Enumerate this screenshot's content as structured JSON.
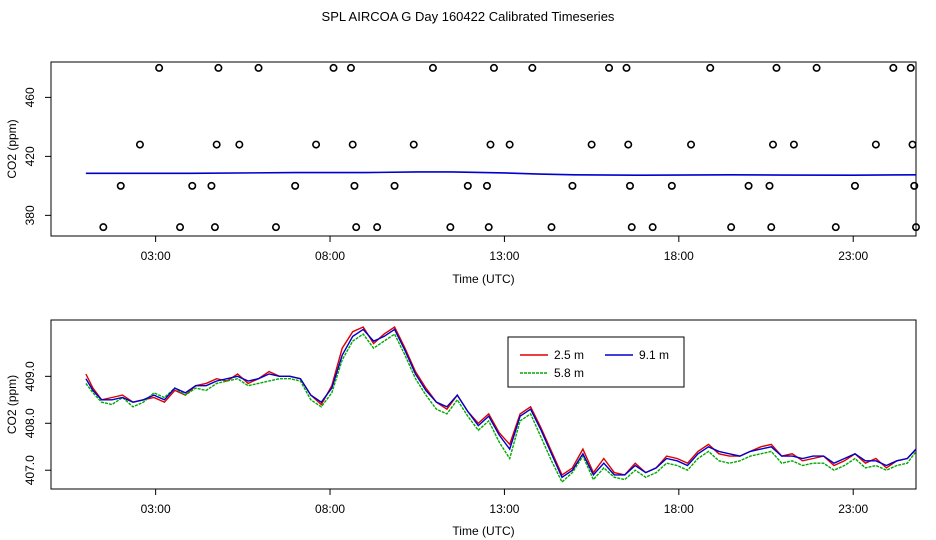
{
  "title": "SPL AIRCOA G  Day 160422  Calibrated Timeseries",
  "chart_data": [
    {
      "type": "scatter+line",
      "xlabel": "Time (UTC)",
      "ylabel": "CO2 (ppm)",
      "xlim": [
        0.0,
        24.8
      ],
      "ylim": [
        366,
        484
      ],
      "xticks": [
        3,
        8,
        13,
        18,
        23
      ],
      "xtick_labels": [
        "03:00",
        "08:00",
        "13:00",
        "18:00",
        "23:00"
      ],
      "yticks": [
        380,
        420,
        460
      ],
      "ytick_labels": [
        "380",
        "420",
        "460"
      ],
      "grid": false,
      "scatter": {
        "name": "",
        "color": "#000000",
        "points": [
          [
            1.5,
            372
          ],
          [
            2.0,
            400
          ],
          [
            2.55,
            428
          ],
          [
            3.1,
            480
          ],
          [
            3.7,
            372
          ],
          [
            4.05,
            400
          ],
          [
            4.6,
            400
          ],
          [
            4.7,
            372
          ],
          [
            4.75,
            428
          ],
          [
            4.8,
            480
          ],
          [
            5.4,
            428
          ],
          [
            5.95,
            480
          ],
          [
            6.45,
            372
          ],
          [
            7.0,
            400
          ],
          [
            7.6,
            428
          ],
          [
            8.1,
            480
          ],
          [
            8.6,
            480
          ],
          [
            8.65,
            428
          ],
          [
            8.7,
            400
          ],
          [
            8.75,
            372
          ],
          [
            9.35,
            372
          ],
          [
            9.85,
            400
          ],
          [
            10.4,
            428
          ],
          [
            10.95,
            480
          ],
          [
            11.45,
            372
          ],
          [
            11.95,
            400
          ],
          [
            12.5,
            400
          ],
          [
            12.55,
            372
          ],
          [
            12.6,
            428
          ],
          [
            12.7,
            480
          ],
          [
            13.15,
            428
          ],
          [
            13.8,
            480
          ],
          [
            14.35,
            372
          ],
          [
            14.95,
            400
          ],
          [
            15.5,
            428
          ],
          [
            16.0,
            480
          ],
          [
            16.5,
            480
          ],
          [
            16.55,
            428
          ],
          [
            16.6,
            400
          ],
          [
            16.65,
            372
          ],
          [
            17.25,
            372
          ],
          [
            17.8,
            400
          ],
          [
            18.35,
            428
          ],
          [
            18.9,
            480
          ],
          [
            19.5,
            372
          ],
          [
            20.0,
            400
          ],
          [
            20.6,
            400
          ],
          [
            20.65,
            372
          ],
          [
            20.7,
            428
          ],
          [
            20.8,
            480
          ],
          [
            21.3,
            428
          ],
          [
            21.95,
            480
          ],
          [
            22.5,
            372
          ],
          [
            23.05,
            400
          ],
          [
            23.65,
            428
          ],
          [
            24.15,
            480
          ],
          [
            24.65,
            480
          ],
          [
            24.7,
            428
          ],
          [
            24.75,
            400
          ],
          [
            24.8,
            372
          ]
        ]
      },
      "lines": [
        {
          "name": "",
          "color": "#0000cc",
          "x": [
            1.0,
            4.0,
            7.0,
            9.0,
            10.5,
            11.5,
            13.0,
            14.0,
            15.0,
            17.0,
            19.5,
            21.0,
            23.0,
            24.8
          ],
          "y": [
            408.5,
            408.5,
            409.0,
            409.0,
            409.5,
            409.5,
            408.8,
            408.0,
            407.5,
            407.2,
            407.5,
            407.3,
            407.2,
            407.5
          ]
        }
      ]
    },
    {
      "type": "line",
      "xlabel": "Time (UTC)",
      "ylabel": "CO2 (ppm)",
      "xlim": [
        0.0,
        24.8
      ],
      "ylim": [
        406.6,
        410.2
      ],
      "xticks": [
        3,
        8,
        13,
        18,
        23
      ],
      "xtick_labels": [
        "03:00",
        "08:00",
        "13:00",
        "18:00",
        "23:00"
      ],
      "yticks": [
        407.0,
        408.0,
        409.0
      ],
      "ytick_labels": [
        "407.0",
        "408.0",
        "409.0"
      ],
      "grid": false,
      "legend": {
        "position": "top-center",
        "columns": 2
      },
      "x": [
        1.0,
        1.2,
        1.45,
        1.75,
        2.05,
        2.35,
        2.65,
        2.95,
        3.25,
        3.55,
        3.85,
        4.15,
        4.45,
        4.75,
        5.05,
        5.35,
        5.65,
        5.95,
        6.25,
        6.55,
        6.85,
        7.15,
        7.45,
        7.75,
        8.05,
        8.35,
        8.65,
        8.95,
        9.25,
        9.55,
        9.85,
        10.15,
        10.45,
        10.75,
        11.05,
        11.35,
        11.65,
        11.95,
        12.25,
        12.55,
        12.85,
        13.15,
        13.45,
        13.75,
        14.05,
        14.35,
        14.65,
        14.95,
        15.25,
        15.55,
        15.85,
        16.15,
        16.45,
        16.75,
        17.05,
        17.35,
        17.65,
        17.95,
        18.25,
        18.55,
        18.85,
        19.15,
        19.45,
        19.75,
        20.05,
        20.35,
        20.65,
        20.95,
        21.25,
        21.55,
        21.85,
        22.15,
        22.45,
        22.75,
        23.05,
        23.35,
        23.65,
        23.95,
        24.25,
        24.55,
        24.8
      ],
      "series": [
        {
          "name": "2.5 m",
          "color": "#dd0000",
          "values": [
            409.05,
            408.75,
            408.5,
            408.55,
            408.6,
            408.45,
            408.5,
            408.55,
            408.45,
            408.7,
            408.6,
            408.8,
            408.85,
            408.95,
            408.9,
            409.05,
            408.85,
            408.95,
            409.1,
            409.0,
            409.0,
            408.95,
            408.6,
            408.4,
            408.8,
            409.6,
            409.95,
            410.05,
            409.7,
            409.9,
            410.05,
            409.6,
            409.1,
            408.75,
            408.45,
            408.3,
            408.6,
            408.25,
            408.0,
            408.2,
            407.8,
            407.55,
            408.2,
            408.35,
            407.9,
            407.4,
            406.9,
            407.05,
            407.45,
            406.95,
            407.25,
            406.95,
            406.9,
            407.15,
            406.95,
            407.05,
            407.3,
            407.25,
            407.15,
            407.4,
            407.55,
            407.35,
            407.3,
            407.3,
            407.4,
            407.5,
            407.55,
            407.3,
            407.35,
            407.2,
            407.25,
            407.3,
            407.1,
            407.2,
            407.35,
            407.15,
            407.25,
            407.05,
            407.2,
            407.25,
            407.45
          ]
        },
        {
          "name": "5.8 m",
          "color": "#00aa00",
          "values": [
            408.85,
            408.65,
            408.45,
            408.4,
            408.55,
            408.35,
            408.45,
            408.65,
            408.55,
            408.75,
            408.6,
            408.75,
            408.7,
            408.85,
            408.9,
            408.95,
            408.8,
            408.85,
            408.9,
            408.95,
            408.95,
            408.9,
            408.5,
            408.35,
            408.65,
            409.35,
            409.75,
            409.9,
            409.6,
            409.75,
            409.9,
            409.45,
            408.95,
            408.6,
            408.3,
            408.2,
            408.5,
            408.15,
            407.85,
            408.05,
            407.6,
            407.25,
            408.05,
            408.2,
            407.7,
            407.2,
            406.75,
            406.95,
            407.3,
            406.8,
            407.05,
            406.85,
            406.8,
            407.0,
            406.85,
            406.95,
            407.15,
            407.1,
            407.0,
            407.25,
            407.4,
            407.2,
            407.15,
            407.2,
            407.3,
            407.35,
            407.4,
            407.15,
            407.2,
            407.1,
            407.15,
            407.15,
            407.0,
            407.1,
            407.25,
            407.05,
            407.1,
            407.0,
            407.1,
            407.15,
            407.4
          ]
        },
        {
          "name": "9.1 m",
          "color": "#0000cc",
          "values": [
            408.95,
            408.7,
            408.5,
            408.5,
            408.55,
            408.45,
            408.5,
            408.6,
            408.5,
            408.75,
            408.65,
            408.8,
            408.8,
            408.9,
            408.95,
            409.0,
            408.9,
            408.95,
            409.05,
            409.0,
            409.0,
            408.95,
            408.6,
            408.45,
            408.75,
            409.45,
            409.85,
            410.0,
            409.75,
            409.85,
            410.0,
            409.55,
            409.05,
            408.7,
            408.45,
            408.35,
            408.6,
            408.25,
            407.95,
            408.15,
            407.75,
            407.45,
            408.15,
            408.3,
            407.85,
            407.35,
            406.85,
            407.0,
            407.35,
            406.9,
            407.15,
            406.9,
            406.9,
            407.1,
            406.95,
            407.05,
            407.25,
            407.2,
            407.1,
            407.35,
            407.5,
            407.4,
            407.35,
            407.3,
            407.4,
            407.45,
            407.5,
            407.3,
            407.3,
            407.25,
            407.3,
            407.3,
            407.15,
            407.25,
            407.35,
            407.2,
            407.2,
            407.1,
            407.2,
            407.25,
            407.45
          ]
        }
      ]
    }
  ]
}
